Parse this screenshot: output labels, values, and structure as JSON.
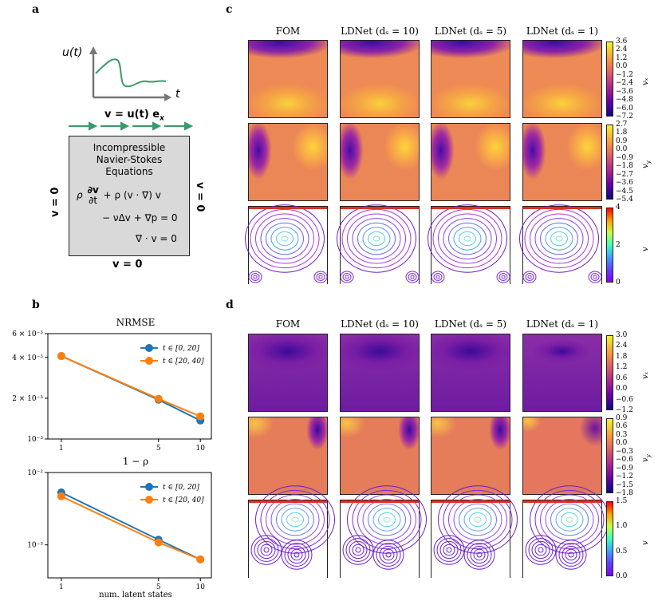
{
  "panel_labels": {
    "a": "a",
    "b": "b",
    "c": "c",
    "d": "d"
  },
  "panel_a": {
    "u_label": "u(t)",
    "t_label": "t",
    "inflow_label": "v = u(t) e",
    "inflow_sub": "x",
    "box_title_1": "Incompressible",
    "box_title_2": "Navier-Stokes",
    "box_title_3": "Equations",
    "eq_rho": "ρ",
    "eq_frac_num": "∂v",
    "eq_frac_den": "∂t",
    "eq_conv": "+ ρ (v · ∇) v",
    "eq_line2": "− νΔv + ∇p = 0",
    "eq_line3": "∇ · v = 0",
    "left_bc": "v = 0",
    "right_bc": "v = 0",
    "bottom_bc": "v = 0",
    "arrow_color": "#3a9a6a"
  },
  "columns_c": [
    "FOM",
    "LDNet (d_s = 10)",
    "LDNet (d_s = 5)",
    "LDNet (d_s = 1)"
  ],
  "columns_d": [
    "FOM",
    "LDNet (d_s = 10)",
    "LDNet (d_s = 5)",
    "LDNet (d_s = 1)"
  ],
  "colorbars_c": [
    {
      "name": "v_x",
      "ticks": [
        "3.6",
        "2.4",
        "1.2",
        "0.0",
        "−1.2",
        "−2.4",
        "−3.6",
        "−4.8",
        "−6.0",
        "−7.2"
      ],
      "scheme": "plasma"
    },
    {
      "name": "v_y",
      "ticks": [
        "2.7",
        "1.8",
        "0.9",
        "0.0",
        "−0.9",
        "−1.8",
        "−2.7",
        "−3.6",
        "−4.5",
        "−5.4"
      ],
      "scheme": "plasma"
    },
    {
      "name": "v",
      "ticks": [
        "4",
        "2",
        "0"
      ],
      "scheme": "rainbow"
    }
  ],
  "colorbars_d": [
    {
      "name": "v_x",
      "ticks": [
        "3.0",
        "2.4",
        "1.8",
        "1.2",
        "0.6",
        "0.0",
        "−0.6",
        "−1.2"
      ],
      "scheme": "plasma"
    },
    {
      "name": "v_y",
      "ticks": [
        "0.9",
        "0.6",
        "0.3",
        "0.0",
        "−0.3",
        "−0.6",
        "−0.9",
        "−1.2",
        "−1.5",
        "−1.8"
      ],
      "scheme": "plasma"
    },
    {
      "name": "v",
      "ticks": [
        "1.5",
        "1.0",
        "0.5",
        "0.0"
      ],
      "scheme": "rainbow"
    }
  ],
  "chart_data": [
    {
      "type": "line",
      "title": "NRMSE",
      "xlabel": "",
      "ylabel": "",
      "x": [
        1,
        5,
        10
      ],
      "xscale": "log",
      "yscale": "log",
      "ylim": [
        0.001,
        0.006
      ],
      "xticks": [
        "1",
        "5",
        "10"
      ],
      "yticks": [
        "6 × 10⁻³",
        "4 × 10⁻³",
        "2 × 10⁻³",
        "10⁻³"
      ],
      "legend_position": "top-right",
      "series": [
        {
          "name": "t ∈ [0, 20]",
          "color": "#1f77b4",
          "values": [
            0.0041,
            0.00195,
            0.00137
          ]
        },
        {
          "name": "t ∈ [20, 40]",
          "color": "#ff7f0e",
          "values": [
            0.0041,
            0.00198,
            0.00147
          ]
        }
      ]
    },
    {
      "type": "line",
      "title": "1 − ρ",
      "xlabel": "num. latent states",
      "ylabel": "",
      "x": [
        1,
        5,
        10
      ],
      "xscale": "log",
      "yscale": "log",
      "ylim": [
        0.00035,
        0.01
      ],
      "xticks": [
        "1",
        "5",
        "10"
      ],
      "yticks": [
        "10⁻²",
        "10⁻³"
      ],
      "legend_position": "top-right",
      "series": [
        {
          "name": "t ∈ [0, 20]",
          "color": "#1f77b4",
          "values": [
            0.0053,
            0.00118,
            0.00063
          ]
        },
        {
          "name": "t ∈ [20, 40]",
          "color": "#ff7f0e",
          "values": [
            0.0047,
            0.00108,
            0.00063
          ]
        }
      ]
    }
  ]
}
